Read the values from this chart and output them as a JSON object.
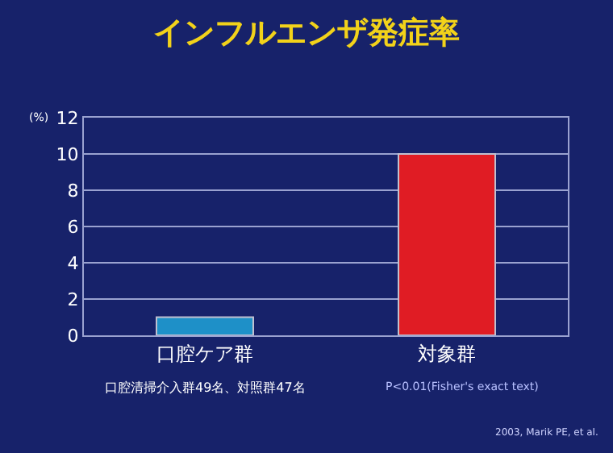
{
  "chart_data": {
    "type": "bar",
    "title": "インフルエンザ発症率",
    "ylabel": "(%)",
    "categories": [
      "口腔ケア群",
      "対象群"
    ],
    "values": [
      1,
      10
    ],
    "colors": [
      "#1e90c8",
      "#e01c24"
    ],
    "ylim": [
      0,
      12
    ],
    "yticks": [
      0,
      2,
      4,
      6,
      8,
      10,
      12
    ],
    "grid": "y",
    "annotations": [
      "口腔清掃介入群49名、対照群47名",
      "P<0.01(Fisher's exact text)",
      "2003, Marik PE, et al."
    ]
  }
}
